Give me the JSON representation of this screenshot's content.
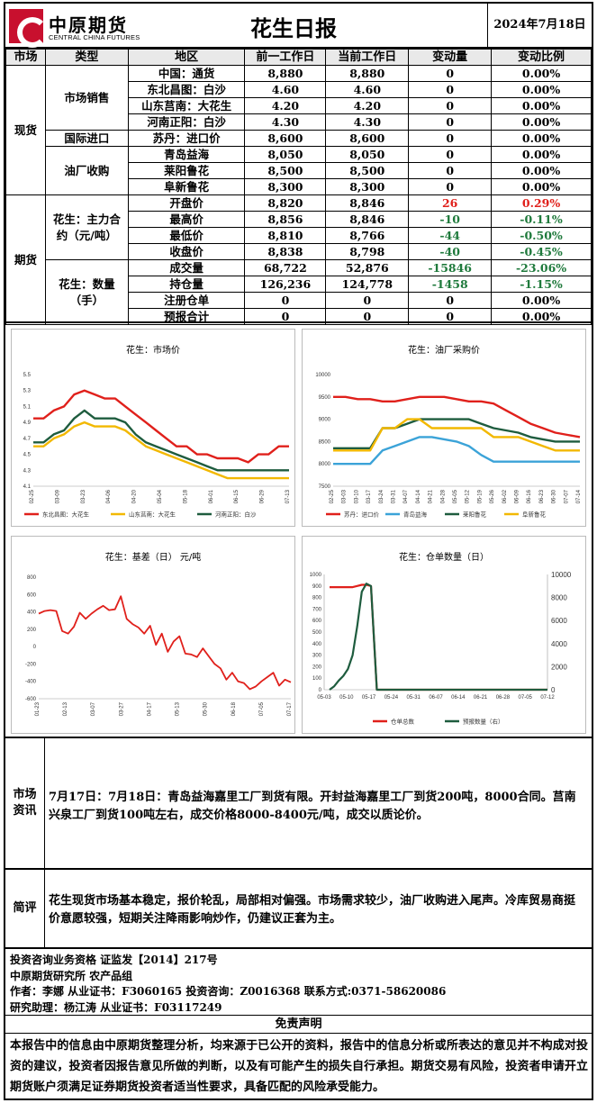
{
  "header": {
    "logo_cn": "中原期货",
    "logo_en": "CENTRAL CHINA FUTURES",
    "title": "花生日报",
    "date": "2024年7月18日"
  },
  "table": {
    "headers": [
      "市场",
      "类型",
      "地区",
      "前一工作日",
      "当前工作日",
      "变动量",
      "变动比例"
    ],
    "markets": {
      "spot": "现货",
      "futures": "期货"
    },
    "types": {
      "sales": "市场销售",
      "import": "国际进口",
      "oil": "油厂收购",
      "main_contract": "花生：主力合约（元/吨）",
      "quantity": "花生：数量（手）"
    },
    "rows": [
      {
        "region": "中国：通货",
        "prev": "8,880",
        "curr": "8,880",
        "chg": "0",
        "pct": "0.00%",
        "color": "#000000"
      },
      {
        "region": "东北昌图：白沙",
        "prev": "4.60",
        "curr": "4.60",
        "chg": "0",
        "pct": "0.00%",
        "color": "#000000"
      },
      {
        "region": "山东莒南：大花生",
        "prev": "4.20",
        "curr": "4.20",
        "chg": "0",
        "pct": "0.00%",
        "color": "#000000"
      },
      {
        "region": "河南正阳：白沙",
        "prev": "4.30",
        "curr": "4.30",
        "chg": "0",
        "pct": "0.00%",
        "color": "#000000"
      },
      {
        "region": "苏丹：进口价",
        "prev": "8,600",
        "curr": "8,600",
        "chg": "0",
        "pct": "0.00%",
        "color": "#000000"
      },
      {
        "region": "青岛益海",
        "prev": "8,050",
        "curr": "8,050",
        "chg": "0",
        "pct": "0.00%",
        "color": "#000000"
      },
      {
        "region": "莱阳鲁花",
        "prev": "8,500",
        "curr": "8,500",
        "chg": "0",
        "pct": "0.00%",
        "color": "#000000"
      },
      {
        "region": "阜新鲁花",
        "prev": "8,300",
        "curr": "8,300",
        "chg": "0",
        "pct": "0.00%",
        "color": "#000000"
      },
      {
        "region": "开盘价",
        "prev": "8,820",
        "curr": "8,846",
        "chg": "26",
        "pct": "0.29%",
        "color": "#e0201b"
      },
      {
        "region": "最高价",
        "prev": "8,856",
        "curr": "8,846",
        "chg": "-10",
        "pct": "-0.11%",
        "color": "#1f7a3c"
      },
      {
        "region": "最低价",
        "prev": "8,810",
        "curr": "8,766",
        "chg": "-44",
        "pct": "-0.50%",
        "color": "#1f7a3c"
      },
      {
        "region": "收盘价",
        "prev": "8,838",
        "curr": "8,798",
        "chg": "-40",
        "pct": "-0.45%",
        "color": "#1f7a3c"
      },
      {
        "region": "成交量",
        "prev": "68,722",
        "curr": "52,876",
        "chg": "-15846",
        "pct": "-23.06%",
        "color": "#1f7a3c"
      },
      {
        "region": "持仓量",
        "prev": "126,236",
        "curr": "124,778",
        "chg": "-1458",
        "pct": "-1.15%",
        "color": "#1f7a3c"
      },
      {
        "region": "注册仓单",
        "prev": "0",
        "curr": "0",
        "chg": "0",
        "pct": "0.00%",
        "color": "#000000"
      },
      {
        "region": "预报合计",
        "prev": "0",
        "curr": "0",
        "chg": "0",
        "pct": "0.00%",
        "color": "#000000"
      }
    ]
  },
  "chart_data": [
    {
      "type": "line",
      "title": "花生：市场价",
      "ylim": [
        4.1,
        5.5
      ],
      "yticks": [
        "5.5",
        "5.3",
        "5.1",
        "4.9",
        "4.7",
        "4.5",
        "4.3",
        "4.1"
      ],
      "xticks": [
        "02-25",
        "03-09",
        "03-23",
        "04-06",
        "04-20",
        "05-04",
        "05-18",
        "06-01",
        "06-15",
        "06-29",
        "07-13"
      ],
      "series": [
        {
          "name": "东北昌图：大花生",
          "color": "#e0201b",
          "values": [
            4.95,
            4.95,
            5.05,
            5.1,
            5.25,
            5.3,
            5.25,
            5.2,
            5.2,
            5.1,
            5.0,
            4.9,
            4.8,
            4.7,
            4.6,
            4.6,
            4.5,
            4.5,
            4.45,
            4.45,
            4.45,
            4.4,
            4.5,
            4.5,
            4.6,
            4.6
          ]
        },
        {
          "name": "山东莒南：大花生",
          "color": "#f2b800",
          "values": [
            4.6,
            4.6,
            4.7,
            4.75,
            4.85,
            4.9,
            4.85,
            4.85,
            4.85,
            4.8,
            4.7,
            4.6,
            4.55,
            4.5,
            4.45,
            4.4,
            4.35,
            4.3,
            4.25,
            4.2,
            4.2,
            4.2,
            4.2,
            4.2,
            4.2,
            4.2
          ]
        },
        {
          "name": "河南正阳：白沙",
          "color": "#1e5c3e",
          "values": [
            4.65,
            4.65,
            4.75,
            4.8,
            4.95,
            5.05,
            4.95,
            4.95,
            4.95,
            4.9,
            4.75,
            4.65,
            4.6,
            4.55,
            4.5,
            4.45,
            4.4,
            4.35,
            4.3,
            4.3,
            4.3,
            4.3,
            4.3,
            4.3,
            4.3,
            4.3
          ]
        }
      ]
    },
    {
      "type": "line",
      "title": "花生：油厂采购价",
      "ylim": [
        7500,
        10000
      ],
      "yticks": [
        "10000",
        "9500",
        "9000",
        "8500",
        "8000",
        "7500"
      ],
      "xticks": [
        "02-25",
        "03-03",
        "03-10",
        "03-17",
        "03-24",
        "03-31",
        "04-07",
        "04-14",
        "04-21",
        "04-28",
        "05-05",
        "05-12",
        "05-19",
        "05-26",
        "06-02",
        "06-09",
        "06-16",
        "06-23",
        "06-30",
        "07-07",
        "07-14"
      ],
      "series": [
        {
          "name": "苏丹：进口价",
          "color": "#e0201b",
          "values": [
            9500,
            9500,
            9450,
            9450,
            9400,
            9400,
            9450,
            9500,
            9500,
            9500,
            9450,
            9400,
            9400,
            9350,
            9200,
            9050,
            8900,
            8800,
            8700,
            8650,
            8600
          ]
        },
        {
          "name": "青岛益海",
          "color": "#3ba3d8",
          "values": [
            8000,
            8000,
            8000,
            8000,
            8300,
            8400,
            8500,
            8600,
            8600,
            8550,
            8500,
            8400,
            8200,
            8050,
            8050,
            8050,
            8050,
            8050,
            8050,
            8050,
            8050
          ]
        },
        {
          "name": "莱阳鲁花",
          "color": "#1e5c3e",
          "values": [
            8350,
            8350,
            8350,
            8350,
            8800,
            8800,
            8900,
            9000,
            9000,
            9000,
            9000,
            9000,
            8900,
            8800,
            8750,
            8700,
            8600,
            8550,
            8500,
            8500,
            8500
          ]
        },
        {
          "name": "阜新鲁花",
          "color": "#f2b800",
          "values": [
            8300,
            8300,
            8300,
            8300,
            8800,
            8800,
            9000,
            9000,
            8800,
            8800,
            8800,
            8800,
            8800,
            8600,
            8600,
            8600,
            8500,
            8400,
            8300,
            8300,
            8300
          ]
        }
      ]
    },
    {
      "type": "line",
      "title": "花生：基差（日） 元/吨",
      "ylim": [
        -600,
        800
      ],
      "yticks": [
        "800",
        "600",
        "400",
        "200",
        "0",
        "-200",
        "-400",
        "-600"
      ],
      "xticks": [
        "01-23",
        "02-13",
        "03-07",
        "03-27",
        "04-17",
        "05-13",
        "05-30",
        "06-18",
        "07-05",
        "07-17"
      ],
      "series": [
        {
          "name": "",
          "color": "#e0201b",
          "values": [
            380,
            410,
            420,
            410,
            180,
            150,
            230,
            390,
            320,
            380,
            430,
            470,
            420,
            430,
            580,
            320,
            260,
            220,
            150,
            240,
            20,
            150,
            -60,
            60,
            120,
            -80,
            -90,
            -120,
            -20,
            -110,
            -200,
            -250,
            -380,
            -300,
            -400,
            -420,
            -490,
            -460,
            -400,
            -350,
            -300,
            -450,
            -380,
            -410
          ]
        }
      ]
    },
    {
      "type": "line",
      "title": "花生：仓单数量（日）",
      "ylim": [
        0,
        1000
      ],
      "y2lim": [
        0,
        10000
      ],
      "yticks": [
        "1000",
        "900",
        "800",
        "700",
        "600",
        "500",
        "400",
        "300",
        "200",
        "100",
        "0"
      ],
      "y2ticks": [
        "10000",
        "8000",
        "6000",
        "4000",
        "2000",
        "0"
      ],
      "xticks": [
        "05-03",
        "05-10",
        "05-17",
        "05-24",
        "05-31",
        "06-07",
        "06-14",
        "06-21",
        "06-28",
        "07-05",
        "07-12"
      ],
      "series": [
        {
          "name": "仓单总数",
          "color": "#e0201b",
          "values": [
            890,
            890,
            890,
            890,
            890,
            890,
            900,
            910,
            910,
            900,
            0,
            0,
            0,
            0,
            0,
            0,
            0,
            0,
            0,
            0,
            0,
            0,
            0,
            0,
            0,
            0,
            0,
            0,
            0,
            0,
            0,
            0,
            0,
            0,
            0,
            0,
            0,
            0,
            0,
            0
          ]
        },
        {
          "name": "预报数量（右）",
          "color": "#1e5c3e",
          "values": [
            0,
            300,
            800,
            1200,
            1800,
            3000,
            5500,
            8500,
            9200,
            9000,
            0,
            0,
            0,
            0,
            0,
            0,
            0,
            0,
            0,
            0,
            0,
            0,
            0,
            0,
            0,
            0,
            0,
            0,
            0,
            0,
            0,
            0,
            0,
            0,
            0,
            0,
            0,
            0,
            0,
            0
          ]
        }
      ]
    }
  ],
  "news": {
    "label": "市场资讯",
    "text": "7月17日：7月18日：青岛益海嘉里工厂到货有限。开封益海嘉里工厂到货200吨，8000合同。莒南兴泉工厂到货100吨左右，成交价格8000-8400元/吨，成交以质论价。"
  },
  "comment": {
    "label": "简评",
    "text": "花生现货市场基本稳定，报价轮乱，局部相对偏强。市场需求较少，油厂收购进入尾声。冷库贸易商挺价意愿较强，短期关注降雨影响炒作，仍建议正套为主。"
  },
  "info": {
    "line1": "投资咨询业务资格  证监发【2014】217号",
    "line2": "中原期货研究所   农产品组",
    "line3": "作者：李娜      从业证书：F3060165     投资咨询：Z0016368     联系方式:0371-58620086",
    "line4": "研究助理：杨江涛    从业证书：F03117249"
  },
  "disclaimer": {
    "title": "免责声明",
    "text": "本报告中的信息由中原期货整理分析，均来源于已公开的资料，报告中的信息分析或所表达的意见并不构成对投资的建议，投资者因报告意见所做的判断，以及有可能产生的损失自行承担。期货交易有风险，投资者申请开立期货账户须满足证券期货投资者适当性要求，具备匹配的风险承受能力。"
  }
}
